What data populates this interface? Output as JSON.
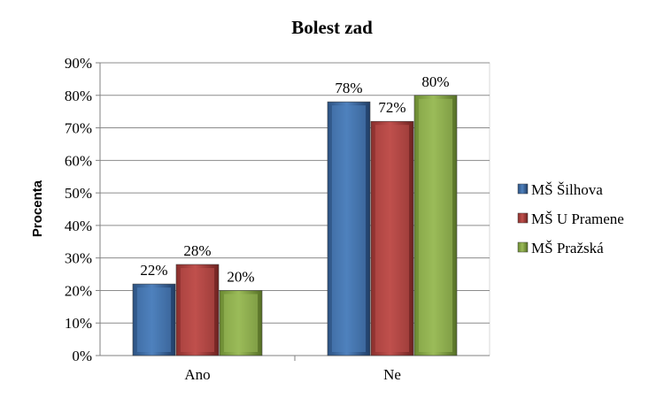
{
  "chart_data": {
    "type": "bar",
    "title": "Bolest zad",
    "xlabel": "",
    "ylabel": "Procenta",
    "categories": [
      "Ano",
      "Ne"
    ],
    "series": [
      {
        "name": "MŠ Šilhova",
        "values": [
          22,
          78
        ],
        "color": "#4f81bd"
      },
      {
        "name": "MŠ U Pramene",
        "values": [
          28,
          72
        ],
        "color": "#c0504d"
      },
      {
        "name": "MŠ Pražská",
        "values": [
          20,
          80
        ],
        "color": "#9bbb59"
      }
    ],
    "ylim": [
      0,
      90
    ],
    "yticks": [
      "0%",
      "10%",
      "20%",
      "30%",
      "40%",
      "50%",
      "60%",
      "70%",
      "80%",
      "90%"
    ],
    "data_labels": [
      [
        "22%",
        "78%"
      ],
      [
        "28%",
        "72%"
      ],
      [
        "20%",
        "80%"
      ]
    ],
    "grid": true,
    "legend_position": "right"
  }
}
